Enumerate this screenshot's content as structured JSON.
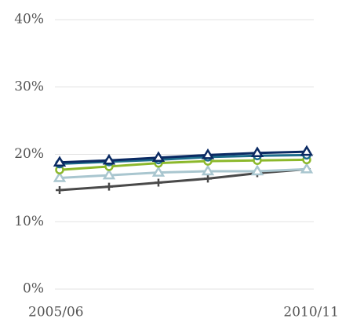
{
  "chart_data": {
    "type": "line",
    "categories": [
      "2005/06",
      null,
      null,
      null,
      null,
      "2010/11"
    ],
    "ylim": [
      0,
      40
    ],
    "yticks": [
      {
        "value": 0,
        "label": "0%"
      },
      {
        "value": 10,
        "label": "10%"
      },
      {
        "value": 20,
        "label": "20%"
      },
      {
        "value": 30,
        "label": "30%"
      },
      {
        "value": 40,
        "label": "40%"
      }
    ],
    "grid": true,
    "series": [
      {
        "color": "#4a4a4a",
        "marker": "plus",
        "values": [
          14.7,
          15.2,
          15.8,
          16.4,
          17.2,
          17.8
        ]
      },
      {
        "color": "#a9c6cf",
        "marker": "triangle",
        "values": [
          16.5,
          16.9,
          17.3,
          17.5,
          17.5,
          17.8
        ]
      },
      {
        "color": "#8cb82b",
        "marker": "circle",
        "values": [
          17.7,
          18.2,
          18.7,
          19.0,
          19.1,
          19.2
        ]
      },
      {
        "color": "#1f6e8c",
        "marker": "circle",
        "values": [
          18.6,
          18.9,
          19.2,
          19.6,
          19.8,
          19.9
        ]
      },
      {
        "color": "#0b2a63",
        "marker": "triangle",
        "values": [
          18.8,
          19.1,
          19.5,
          19.9,
          20.2,
          20.4
        ]
      }
    ]
  }
}
